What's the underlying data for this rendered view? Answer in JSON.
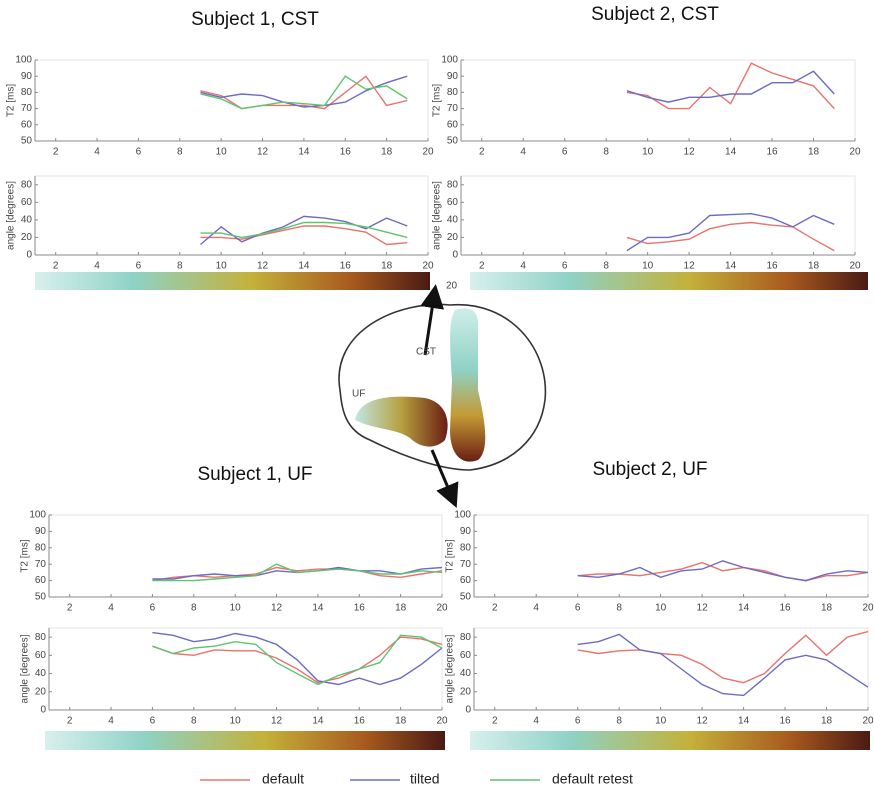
{
  "chart_data": [
    {
      "type": "line",
      "title": "Subject 1, CST",
      "ylabel": "T2 [ms]",
      "xlim": [
        1,
        20
      ],
      "ylim": [
        50,
        100
      ],
      "xticks": [
        2,
        4,
        6,
        8,
        10,
        12,
        14,
        16,
        18,
        20
      ],
      "yticks": [
        50,
        60,
        70,
        80,
        90,
        100
      ],
      "x": [
        9,
        10,
        11,
        12,
        13,
        14,
        15,
        16,
        17,
        18,
        19
      ],
      "series": [
        {
          "name": "default",
          "color": "#e8736c",
          "values": [
            81,
            78,
            70,
            72,
            72,
            72,
            70,
            80,
            90,
            72,
            75
          ]
        },
        {
          "name": "tilted",
          "color": "#6b6bc4",
          "values": [
            80,
            77,
            79,
            78,
            74,
            71,
            72,
            74,
            81,
            86,
            90
          ]
        },
        {
          "name": "default retest",
          "color": "#5fc46f",
          "values": [
            79,
            76,
            70,
            72,
            74,
            73,
            72,
            90,
            82,
            84,
            76
          ]
        }
      ]
    },
    {
      "type": "line",
      "ylabel": "angle [degrees]",
      "xlim": [
        1,
        20
      ],
      "ylim": [
        0,
        90
      ],
      "xticks": [
        2,
        4,
        6,
        8,
        10,
        12,
        14,
        16,
        18,
        20
      ],
      "yticks": [
        0,
        20,
        40,
        60,
        80
      ],
      "x": [
        9,
        10,
        11,
        12,
        13,
        14,
        15,
        16,
        17,
        18,
        19
      ],
      "series": [
        {
          "color": "#e8736c",
          "values": [
            20,
            20,
            18,
            23,
            28,
            33,
            33,
            30,
            26,
            12,
            14
          ]
        },
        {
          "color": "#6b6bc4",
          "values": [
            12,
            32,
            15,
            25,
            32,
            44,
            42,
            38,
            30,
            42,
            33
          ]
        },
        {
          "color": "#5fc46f",
          "values": [
            25,
            25,
            20,
            24,
            30,
            37,
            37,
            36,
            32,
            26,
            20
          ]
        }
      ]
    },
    {
      "type": "line",
      "title": "Subject 2, CST",
      "ylabel": "T2 [ms]",
      "xlim": [
        1,
        20
      ],
      "ylim": [
        50,
        100
      ],
      "xticks": [
        2,
        4,
        6,
        8,
        10,
        12,
        14,
        16,
        18,
        20
      ],
      "yticks": [
        50,
        60,
        70,
        80,
        90,
        100
      ],
      "x": [
        9,
        10,
        11,
        12,
        13,
        14,
        15,
        16,
        17,
        18,
        19
      ],
      "series": [
        {
          "color": "#e8736c",
          "values": [
            80,
            78,
            70,
            70,
            83,
            73,
            98,
            92,
            88,
            84,
            70
          ]
        },
        {
          "color": "#6b6bc4",
          "values": [
            81,
            77,
            74,
            77,
            77,
            79,
            79,
            86,
            86,
            93,
            79
          ]
        }
      ]
    },
    {
      "type": "line",
      "ylabel": "angle [degrees]",
      "xlim": [
        1,
        20
      ],
      "ylim": [
        0,
        90
      ],
      "xticks": [
        2,
        4,
        6,
        8,
        10,
        12,
        14,
        16,
        18,
        20
      ],
      "yticks": [
        0,
        20,
        40,
        60,
        80
      ],
      "x": [
        9,
        10,
        11,
        12,
        13,
        14,
        15,
        16,
        17,
        18,
        19
      ],
      "series": [
        {
          "color": "#e8736c",
          "values": [
            20,
            13,
            15,
            18,
            30,
            35,
            37,
            34,
            32,
            18,
            5
          ]
        },
        {
          "color": "#6b6bc4",
          "values": [
            5,
            20,
            20,
            25,
            45,
            46,
            47,
            42,
            32,
            45,
            35
          ]
        }
      ]
    },
    {
      "type": "line",
      "title": "Subject 1, UF",
      "ylabel": "T2 [ms]",
      "xlim": [
        1,
        20
      ],
      "ylim": [
        50,
        100
      ],
      "xticks": [
        2,
        4,
        6,
        8,
        10,
        12,
        14,
        16,
        18,
        20
      ],
      "yticks": [
        50,
        60,
        70,
        80,
        90,
        100
      ],
      "x": [
        6,
        7,
        8,
        9,
        10,
        11,
        12,
        13,
        14,
        15,
        16,
        17,
        18,
        19,
        20
      ],
      "series": [
        {
          "color": "#e8736c",
          "values": [
            60,
            62,
            63,
            62,
            63,
            64,
            68,
            66,
            67,
            67,
            66,
            63,
            62,
            64,
            66
          ]
        },
        {
          "color": "#6b6bc4",
          "values": [
            61,
            61,
            63,
            64,
            63,
            63,
            66,
            65,
            66,
            68,
            66,
            66,
            64,
            67,
            68
          ]
        },
        {
          "color": "#5fc46f",
          "values": [
            60,
            60,
            60,
            61,
            62,
            63,
            70,
            65,
            66,
            67,
            66,
            64,
            64,
            66,
            65
          ]
        }
      ]
    },
    {
      "type": "line",
      "ylabel": "angle [degrees]",
      "xlim": [
        1,
        20
      ],
      "ylim": [
        0,
        90
      ],
      "xticks": [
        2,
        4,
        6,
        8,
        10,
        12,
        14,
        16,
        18,
        20
      ],
      "yticks": [
        0,
        20,
        40,
        60,
        80
      ],
      "x": [
        6,
        7,
        8,
        9,
        10,
        11,
        12,
        13,
        14,
        15,
        16,
        17,
        18,
        19,
        20
      ],
      "series": [
        {
          "color": "#e8736c",
          "values": [
            70,
            62,
            60,
            66,
            65,
            65,
            57,
            45,
            30,
            35,
            45,
            60,
            80,
            78,
            72
          ]
        },
        {
          "color": "#6b6bc4",
          "values": [
            85,
            82,
            75,
            78,
            84,
            80,
            72,
            55,
            32,
            28,
            35,
            28,
            35,
            50,
            68
          ]
        },
        {
          "color": "#5fc46f",
          "values": [
            70,
            62,
            68,
            70,
            75,
            72,
            52,
            40,
            28,
            38,
            45,
            52,
            82,
            80,
            68
          ]
        }
      ]
    },
    {
      "type": "line",
      "title": "Subject 2, UF",
      "ylabel": "T2 [ms]",
      "xlim": [
        1,
        20
      ],
      "ylim": [
        50,
        100
      ],
      "xticks": [
        2,
        4,
        6,
        8,
        10,
        12,
        14,
        16,
        18,
        20
      ],
      "yticks": [
        50,
        60,
        70,
        80,
        90,
        100
      ],
      "x": [
        6,
        7,
        8,
        9,
        10,
        11,
        12,
        13,
        14,
        15,
        16,
        17,
        18,
        19,
        20
      ],
      "series": [
        {
          "color": "#e8736c",
          "values": [
            63,
            64,
            64,
            63,
            65,
            67,
            71,
            66,
            68,
            66,
            62,
            60,
            63,
            63,
            65
          ]
        },
        {
          "color": "#6b6bc4",
          "values": [
            63,
            62,
            64,
            68,
            62,
            66,
            67,
            72,
            68,
            65,
            62,
            60,
            64,
            66,
            65
          ]
        }
      ]
    },
    {
      "type": "line",
      "ylabel": "angle [degrees]",
      "xlim": [
        1,
        20
      ],
      "ylim": [
        0,
        90
      ],
      "xticks": [
        2,
        4,
        6,
        8,
        10,
        12,
        14,
        16,
        18,
        20
      ],
      "yticks": [
        0,
        20,
        40,
        60,
        80
      ],
      "x": [
        6,
        7,
        8,
        9,
        10,
        11,
        12,
        13,
        14,
        15,
        16,
        17,
        18,
        19,
        20
      ],
      "series": [
        {
          "color": "#e8736c",
          "values": [
            66,
            62,
            65,
            66,
            62,
            60,
            50,
            35,
            30,
            40,
            62,
            82,
            60,
            80,
            86
          ]
        },
        {
          "color": "#6b6bc4",
          "values": [
            72,
            75,
            83,
            66,
            62,
            45,
            28,
            18,
            16,
            35,
            55,
            60,
            55,
            40,
            25
          ]
        }
      ]
    }
  ],
  "diagram": {
    "labels": [
      "CST",
      "UF",
      "20"
    ]
  }
}
